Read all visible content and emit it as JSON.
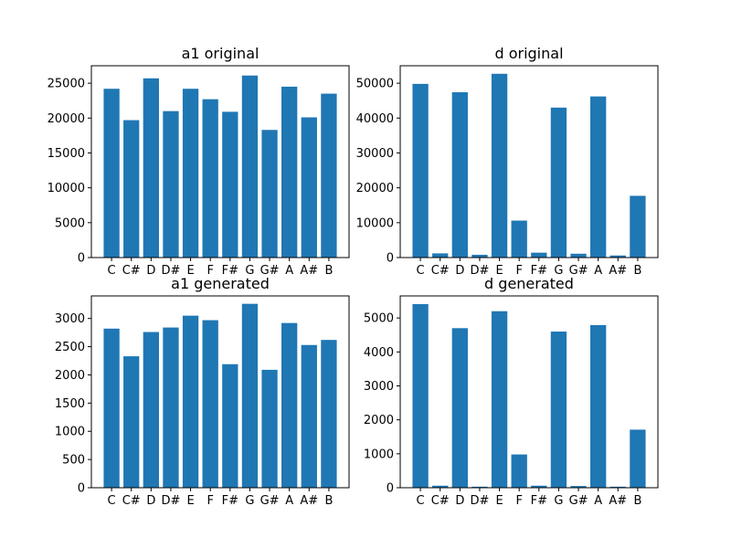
{
  "chart_data": [
    {
      "type": "bar",
      "title": "a1 original",
      "categories": [
        "C",
        "C#",
        "D",
        "D#",
        "E",
        "F",
        "F#",
        "G",
        "G#",
        "A",
        "A#",
        "B"
      ],
      "values": [
        24200,
        19700,
        25700,
        21000,
        24200,
        22700,
        20900,
        26100,
        18300,
        24500,
        20100,
        23500
      ],
      "ylim": [
        0,
        27500
      ],
      "yticks": [
        0,
        5000,
        10000,
        15000,
        20000,
        25000
      ],
      "xlabel": "",
      "ylabel": "",
      "grid": false,
      "color": "#1f77b4"
    },
    {
      "type": "bar",
      "title": "d original",
      "categories": [
        "C",
        "C#",
        "D",
        "D#",
        "E",
        "F",
        "F#",
        "G",
        "G#",
        "A",
        "A#",
        "B"
      ],
      "values": [
        49800,
        1200,
        47400,
        800,
        52700,
        10600,
        1400,
        43000,
        1100,
        46200,
        600,
        17700
      ],
      "ylim": [
        0,
        55000
      ],
      "yticks": [
        0,
        10000,
        20000,
        30000,
        40000,
        50000
      ],
      "xlabel": "",
      "ylabel": "",
      "grid": false,
      "color": "#1f77b4"
    },
    {
      "type": "bar",
      "title": "a1 generated",
      "categories": [
        "C",
        "C#",
        "D",
        "D#",
        "E",
        "F",
        "F#",
        "G",
        "G#",
        "A",
        "A#",
        "B"
      ],
      "values": [
        2820,
        2330,
        2760,
        2840,
        3050,
        2970,
        2190,
        3260,
        2090,
        2920,
        2530,
        2620
      ],
      "ylim": [
        0,
        3400
      ],
      "yticks": [
        0,
        500,
        1000,
        1500,
        2000,
        2500,
        3000
      ],
      "xlabel": "",
      "ylabel": "",
      "grid": false,
      "color": "#1f77b4"
    },
    {
      "type": "bar",
      "title": "d generated",
      "categories": [
        "C",
        "C#",
        "D",
        "D#",
        "E",
        "F",
        "F#",
        "G",
        "G#",
        "A",
        "A#",
        "B"
      ],
      "values": [
        5410,
        60,
        4700,
        30,
        5200,
        980,
        60,
        4600,
        50,
        4790,
        30,
        1710
      ],
      "ylim": [
        0,
        5650
      ],
      "yticks": [
        0,
        1000,
        2000,
        3000,
        4000,
        5000
      ],
      "xlabel": "",
      "ylabel": "",
      "grid": false,
      "color": "#1f77b4"
    }
  ]
}
